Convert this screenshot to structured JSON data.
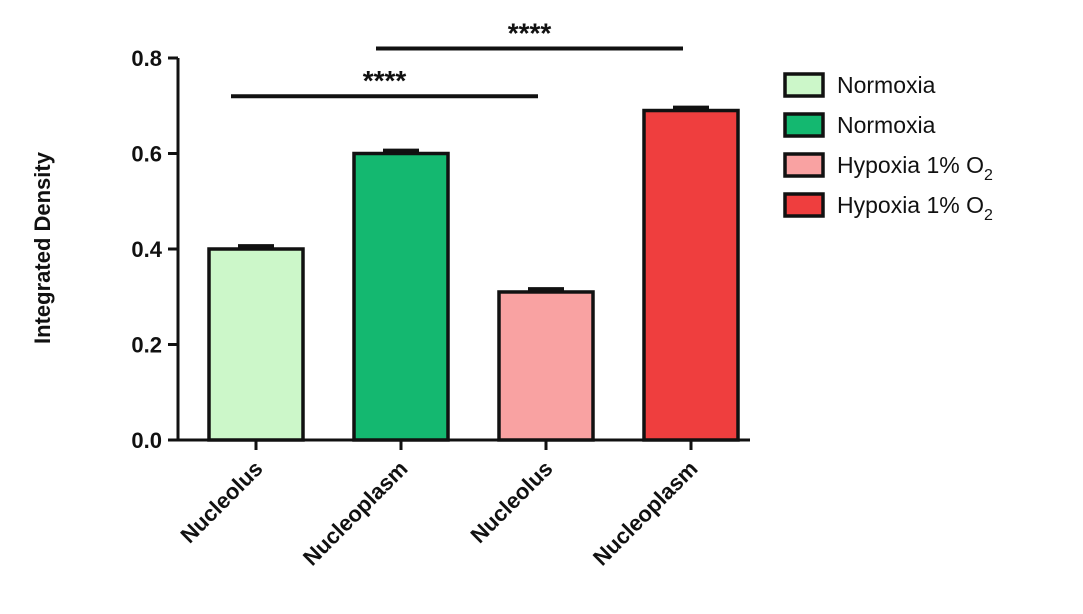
{
  "chart_data": {
    "type": "bar",
    "title": "",
    "xlabel": "",
    "ylabel": "Integrated Density",
    "ylim": [
      0,
      0.8
    ],
    "yticks": [
      "0.0",
      "0.2",
      "0.4",
      "0.6",
      "0.8"
    ],
    "categories": [
      "Nucleolus",
      "Nucleoplasm",
      "Nucleolus",
      "Nucleoplasm"
    ],
    "values": [
      0.4,
      0.6,
      0.31,
      0.69
    ],
    "errors": [
      0.006,
      0.006,
      0.006,
      0.006
    ],
    "colors": [
      "#ccf7c9",
      "#14b870",
      "#f9a2a2",
      "#ef3e3e"
    ],
    "legend": [
      {
        "label": "Normoxia",
        "sub": "",
        "color": "#ccf7c9"
      },
      {
        "label": "Normoxia",
        "sub": "",
        "color": "#14b870"
      },
      {
        "label": "Hypoxia 1% O",
        "sub": "2",
        "color": "#f9a2a2"
      },
      {
        "label": "Hypoxia 1% O",
        "sub": "2",
        "color": "#ef3e3e"
      }
    ],
    "legend_position": "right",
    "significance": [
      {
        "from": 0,
        "to": 2,
        "label": "****",
        "y": 0.72
      },
      {
        "from": 1,
        "to": 3,
        "label": "****",
        "y": 0.82
      }
    ],
    "grid": false
  }
}
